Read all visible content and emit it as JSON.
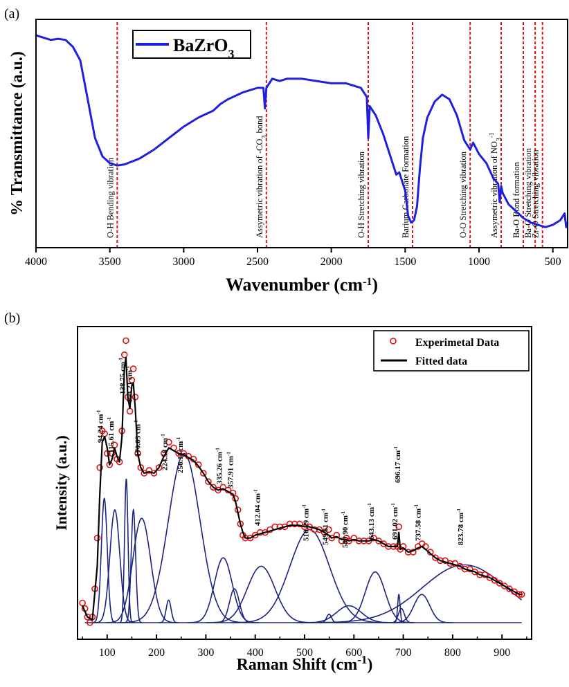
{
  "chart_data": [
    {
      "panel": "(a)",
      "type": "line",
      "xlabel": "Wavenumber (cm",
      "xlabel_sup": "-1",
      "xlabel_end": ")",
      "ylabel": "% Transmittance (a.u.)",
      "xlim": [
        4000,
        400
      ],
      "x_reversed": true,
      "ylim": [
        0,
        1
      ],
      "x_ticks": [
        4000,
        3500,
        3000,
        2500,
        2000,
        1500,
        1000,
        500
      ],
      "grid": false,
      "legend_position": "top-left",
      "series": [
        {
          "name": "BaZrO3",
          "color": "#1f1fe0",
          "x": [
            4000,
            3900,
            3850,
            3800,
            3750,
            3700,
            3650,
            3600,
            3550,
            3500,
            3450,
            3400,
            3300,
            3200,
            3100,
            3000,
            2900,
            2800,
            2750,
            2700,
            2600,
            2500,
            2460,
            2450,
            2440,
            2400,
            2350,
            2300,
            2200,
            2100,
            2000,
            1900,
            1800,
            1760,
            1750,
            1745,
            1740,
            1700,
            1650,
            1600,
            1560,
            1540,
            1500,
            1480,
            1460,
            1440,
            1420,
            1400,
            1380,
            1350,
            1300,
            1250,
            1200,
            1150,
            1100,
            1060,
            1040,
            1000,
            950,
            900,
            870,
            860,
            850,
            840,
            800,
            750,
            700,
            650,
            600,
            550,
            500,
            450,
            420,
            410,
            400
          ],
          "y": [
            0.93,
            0.91,
            0.915,
            0.91,
            0.88,
            0.82,
            0.65,
            0.48,
            0.4,
            0.37,
            0.36,
            0.365,
            0.39,
            0.43,
            0.48,
            0.53,
            0.57,
            0.6,
            0.63,
            0.65,
            0.68,
            0.7,
            0.7,
            0.61,
            0.7,
            0.74,
            0.73,
            0.74,
            0.74,
            0.73,
            0.72,
            0.72,
            0.7,
            0.66,
            0.48,
            0.55,
            0.62,
            0.58,
            0.5,
            0.4,
            0.32,
            0.33,
            0.25,
            0.14,
            0.11,
            0.12,
            0.18,
            0.35,
            0.48,
            0.57,
            0.64,
            0.67,
            0.65,
            0.58,
            0.47,
            0.43,
            0.46,
            0.41,
            0.37,
            0.3,
            0.28,
            0.2,
            0.27,
            0.24,
            0.19,
            0.16,
            0.13,
            0.11,
            0.1,
            0.09,
            0.1,
            0.12,
            0.15,
            0.09,
            0.11
          ]
        }
      ],
      "annotations": [
        {
          "x": 3450,
          "label": "O-H Bending vibration"
        },
        {
          "x": 2440,
          "label": "Assymetric vibration of -CO",
          "label_sub": "3",
          "label_end": " bond"
        },
        {
          "x": 1750,
          "label": "O-H Stretching vibration"
        },
        {
          "x": 1450,
          "label": "Barium Carbonate Formation"
        },
        {
          "x": 1060,
          "label": "O-O Stretching vibration"
        },
        {
          "x": 850,
          "label": "Assymetric vibration of NO",
          "label_sub": "3",
          "label_sup": "-1"
        },
        {
          "x": 700,
          "label": "Ba-O Bond formation"
        },
        {
          "x": 620,
          "label": "Ba-O Stretching vibration"
        },
        {
          "x": 570,
          "label": "Zr-O Stretching vibration"
        }
      ],
      "annotation_color": "#e01010"
    },
    {
      "panel": "(b)",
      "type": "line",
      "xlabel": "Raman Shift (cm",
      "xlabel_sup": "-1",
      "xlabel_end": ")",
      "ylabel": "Intensity (a.u.)",
      "xlim": [
        40,
        960
      ],
      "ylim": [
        0,
        1.05
      ],
      "x_ticks": [
        100,
        200,
        300,
        400,
        500,
        600,
        700,
        800,
        900
      ],
      "grid": false,
      "legend_position": "top-right",
      "series": [
        {
          "name": "Experimetal Data",
          "style": "markers",
          "color": "#e01010",
          "x": [
            50,
            55,
            60,
            65,
            70,
            75,
            80,
            85,
            90,
            95,
            100,
            105,
            110,
            115,
            120,
            125,
            130,
            135,
            138,
            142,
            146,
            150,
            153,
            157,
            162,
            168,
            175,
            185,
            195,
            205,
            215,
            225,
            235,
            245,
            255,
            265,
            275,
            285,
            295,
            305,
            315,
            325,
            335,
            345,
            355,
            360,
            365,
            370,
            375,
            380,
            390,
            400,
            410,
            420,
            430,
            440,
            450,
            460,
            470,
            480,
            490,
            500,
            510,
            520,
            530,
            540,
            549,
            555,
            565,
            575,
            585,
            590,
            600,
            610,
            620,
            630,
            640,
            650,
            660,
            670,
            680,
            688,
            691,
            694,
            700,
            710,
            720,
            730,
            738,
            745,
            755,
            765,
            775,
            785,
            795,
            805,
            815,
            825,
            835,
            845,
            855,
            865,
            875,
            885,
            895,
            905,
            915,
            925,
            935,
            940
          ],
          "y": [
            0.07,
            0.05,
            0.02,
            0.0,
            0.02,
            0.12,
            0.3,
            0.55,
            0.68,
            0.67,
            0.6,
            0.56,
            0.6,
            0.63,
            0.58,
            0.57,
            0.68,
            0.95,
            1.0,
            0.8,
            0.75,
            0.86,
            0.9,
            0.8,
            0.6,
            0.55,
            0.53,
            0.54,
            0.53,
            0.55,
            0.6,
            0.64,
            0.62,
            0.6,
            0.6,
            0.59,
            0.58,
            0.56,
            0.53,
            0.5,
            0.48,
            0.47,
            0.48,
            0.47,
            0.46,
            0.44,
            0.4,
            0.35,
            0.31,
            0.3,
            0.3,
            0.31,
            0.32,
            0.32,
            0.33,
            0.34,
            0.34,
            0.34,
            0.35,
            0.35,
            0.35,
            0.34,
            0.34,
            0.33,
            0.33,
            0.32,
            0.33,
            0.3,
            0.31,
            0.29,
            0.3,
            0.29,
            0.3,
            0.29,
            0.29,
            0.29,
            0.3,
            0.29,
            0.28,
            0.27,
            0.27,
            0.27,
            0.34,
            0.26,
            0.27,
            0.25,
            0.25,
            0.27,
            0.28,
            0.27,
            0.25,
            0.23,
            0.22,
            0.22,
            0.21,
            0.21,
            0.2,
            0.19,
            0.19,
            0.18,
            0.17,
            0.17,
            0.16,
            0.15,
            0.14,
            0.13,
            0.12,
            0.11,
            0.1,
            0.1
          ]
        },
        {
          "name": "Fitted data",
          "style": "line",
          "color": "#000000",
          "x": [
            50,
            60,
            70,
            80,
            85,
            90,
            95,
            100,
            105,
            110,
            115,
            120,
            125,
            130,
            135,
            138,
            142,
            146,
            150,
            153,
            157,
            162,
            168,
            175,
            185,
            195,
            205,
            215,
            225,
            235,
            245,
            255,
            265,
            275,
            285,
            295,
            305,
            315,
            325,
            335,
            345,
            355,
            360,
            365,
            370,
            375,
            380,
            390,
            400,
            410,
            420,
            430,
            440,
            450,
            460,
            470,
            480,
            490,
            500,
            510,
            520,
            530,
            540,
            549,
            555,
            565,
            575,
            585,
            590,
            600,
            610,
            620,
            630,
            640,
            650,
            660,
            670,
            680,
            688,
            691,
            694,
            700,
            710,
            720,
            730,
            738,
            745,
            755,
            765,
            775,
            785,
            795,
            805,
            815,
            825,
            835,
            845,
            855,
            865,
            875,
            885,
            895,
            905,
            915,
            925,
            935,
            940
          ],
          "y": [
            0.06,
            0.02,
            0.01,
            0.2,
            0.45,
            0.64,
            0.66,
            0.62,
            0.56,
            0.58,
            0.62,
            0.59,
            0.57,
            0.66,
            0.9,
            0.94,
            0.8,
            0.76,
            0.84,
            0.85,
            0.76,
            0.6,
            0.55,
            0.53,
            0.535,
            0.53,
            0.55,
            0.59,
            0.62,
            0.61,
            0.6,
            0.595,
            0.585,
            0.575,
            0.555,
            0.53,
            0.5,
            0.48,
            0.47,
            0.475,
            0.465,
            0.455,
            0.43,
            0.39,
            0.35,
            0.32,
            0.3,
            0.3,
            0.31,
            0.315,
            0.32,
            0.325,
            0.33,
            0.335,
            0.34,
            0.345,
            0.345,
            0.345,
            0.34,
            0.34,
            0.335,
            0.33,
            0.32,
            0.31,
            0.3,
            0.305,
            0.295,
            0.295,
            0.29,
            0.295,
            0.29,
            0.29,
            0.29,
            0.295,
            0.29,
            0.28,
            0.27,
            0.27,
            0.27,
            0.32,
            0.26,
            0.265,
            0.25,
            0.255,
            0.265,
            0.27,
            0.26,
            0.245,
            0.23,
            0.22,
            0.215,
            0.21,
            0.205,
            0.2,
            0.19,
            0.185,
            0.18,
            0.17,
            0.165,
            0.16,
            0.15,
            0.14,
            0.13,
            0.12,
            0.11,
            0.1,
            0.1
          ]
        }
      ],
      "components": [
        {
          "center": 94.24,
          "amp": 0.44,
          "width": 6
        },
        {
          "center": 115.61,
          "amp": 0.4,
          "width": 10
        },
        {
          "center": 138.75,
          "amp": 0.51,
          "width": 3.5
        },
        {
          "center": 153.21,
          "amp": 0.4,
          "width": 4.5
        },
        {
          "center": 170.03,
          "amp": 0.37,
          "width": 18
        },
        {
          "center": 224.58,
          "amp": 0.08,
          "width": 5
        },
        {
          "center": 256.11,
          "amp": 0.6,
          "width": 32
        },
        {
          "center": 335.26,
          "amp": 0.23,
          "width": 18
        },
        {
          "center": 357.91,
          "amp": 0.12,
          "width": 10
        },
        {
          "center": 412.04,
          "amp": 0.2,
          "width": 28
        },
        {
          "center": 510.29,
          "amp": 0.33,
          "width": 40
        },
        {
          "center": 549.61,
          "amp": 0.03,
          "width": 5
        },
        {
          "center": 589.9,
          "amp": 0.06,
          "width": 25
        },
        {
          "center": 643.13,
          "amp": 0.18,
          "width": 20
        },
        {
          "center": 691.02,
          "amp": 0.1,
          "width": 2.5
        },
        {
          "center": 696.17,
          "amp": 0.05,
          "width": 6
        },
        {
          "center": 737.58,
          "amp": 0.1,
          "width": 16
        },
        {
          "center": 823.78,
          "amp": 0.205,
          "width": 85
        }
      ],
      "component_color": "#1a237e",
      "peak_labels": [
        {
          "x": 94.24,
          "label": "94.24 cm",
          "sup": "-1"
        },
        {
          "x": 115.61,
          "label": "115.61 cm",
          "sup": "-1"
        },
        {
          "x": 138.75,
          "label": "138.75 cm",
          "sup": "-1"
        },
        {
          "x": 153.21,
          "label": "153.21 cm",
          "sup": "-1"
        },
        {
          "x": 170.03,
          "label": "170.03 cm",
          "sup": "-1"
        },
        {
          "x": 224.58,
          "label": "224.58 cm",
          "sup": "-1"
        },
        {
          "x": 256.11,
          "label": "256.11 cm",
          "sup": "-1"
        },
        {
          "x": 335.26,
          "label": "335.26 cm",
          "sup": "-1"
        },
        {
          "x": 357.91,
          "label": "357.91 cm",
          "sup": "-1"
        },
        {
          "x": 412.04,
          "label": "412.04 cm",
          "sup": "-1"
        },
        {
          "x": 510.29,
          "label": "510.29 cm",
          "sup": "-1"
        },
        {
          "x": 549.61,
          "label": "549.61 cm",
          "sup": "-1"
        },
        {
          "x": 589.9,
          "label": "589.90 cm",
          "sup": "-1"
        },
        {
          "x": 643.13,
          "label": "643.13 cm",
          "sup": "-1"
        },
        {
          "x": 691.02,
          "label": "691.02 cm",
          "sup": "-1"
        },
        {
          "x": 696.17,
          "label": "696.17 cm",
          "sup": "-1"
        },
        {
          "x": 737.58,
          "label": "737.58 cm",
          "sup": "-1"
        },
        {
          "x": 823.78,
          "label": "823.78 cm",
          "sup": "-1"
        }
      ]
    }
  ]
}
